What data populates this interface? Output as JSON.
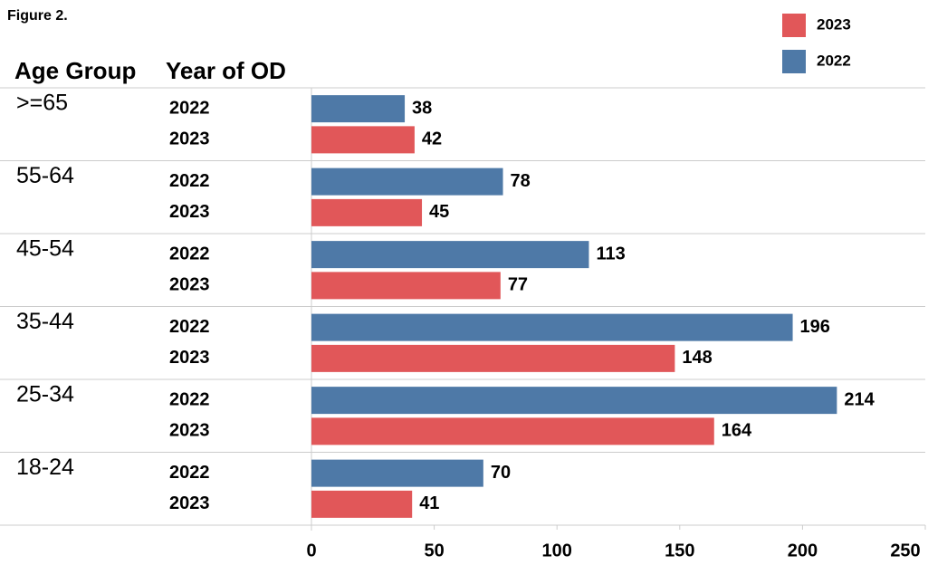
{
  "chart_data": {
    "type": "bar",
    "orientation": "horizontal",
    "figure_label": "Figure 2.",
    "row_headers": [
      "Age Group",
      "Year of OD"
    ],
    "categories": [
      ">=65",
      "55-64",
      "45-54",
      "35-44",
      "25-34",
      "18-24"
    ],
    "series": [
      {
        "name": "2022",
        "color": "#4e79a7",
        "values": [
          38,
          78,
          113,
          196,
          214,
          70
        ]
      },
      {
        "name": "2023",
        "color": "#e15759",
        "values": [
          42,
          45,
          77,
          148,
          164,
          41
        ]
      }
    ],
    "xlim": [
      0,
      250
    ],
    "xticks": [
      0,
      50,
      100,
      150,
      200,
      250
    ],
    "legend": "top-right"
  }
}
